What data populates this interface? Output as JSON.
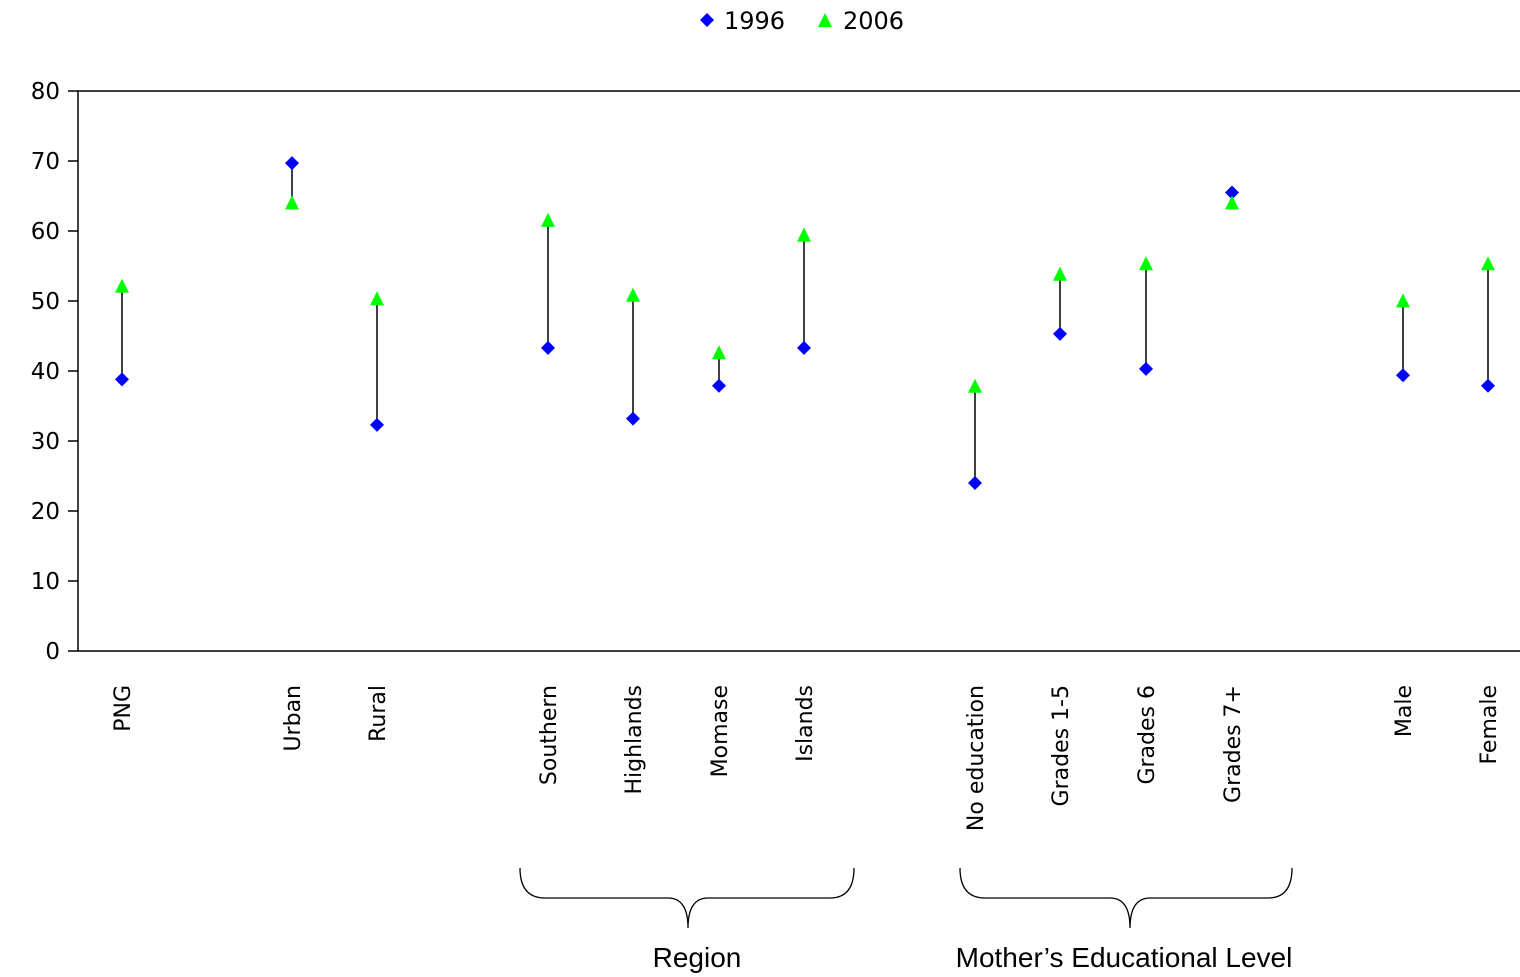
{
  "chart_data": {
    "type": "scatter",
    "categories": [
      "PNG",
      "Urban",
      "Rural",
      "Southern",
      "Highlands",
      "Momase",
      "Islands",
      "No education",
      "Grades 1-5",
      "Grades 6",
      "Grades 7+",
      "Male",
      "Female"
    ],
    "series": [
      {
        "name": "1996",
        "marker": "diamond",
        "color": "#0000FF",
        "values": [
          38.8,
          69.7,
          32.3,
          43.3,
          33.2,
          37.9,
          43.3,
          24.0,
          45.3,
          40.3,
          65.5,
          39.4,
          37.9
        ]
      },
      {
        "name": "2006",
        "marker": "triangle",
        "color": "#00FF00",
        "values": [
          51.9,
          63.8,
          50.1,
          61.3,
          50.6,
          42.4,
          59.2,
          37.6,
          53.6,
          55.1,
          63.8,
          49.8,
          55.1
        ]
      }
    ],
    "ylim": [
      0,
      80
    ],
    "yticks": [
      0,
      10,
      20,
      30,
      40,
      50,
      60,
      70,
      80
    ],
    "grid": false,
    "legend": "top-center",
    "connectors": true,
    "groups": [
      {
        "label": "Region",
        "members": [
          "Southern",
          "Highlands",
          "Momase",
          "Islands"
        ]
      },
      {
        "label": "Mother’s Educational Level",
        "members": [
          "No education",
          "Grades 1-5",
          "Grades 6",
          "Grades 7+"
        ]
      }
    ]
  }
}
